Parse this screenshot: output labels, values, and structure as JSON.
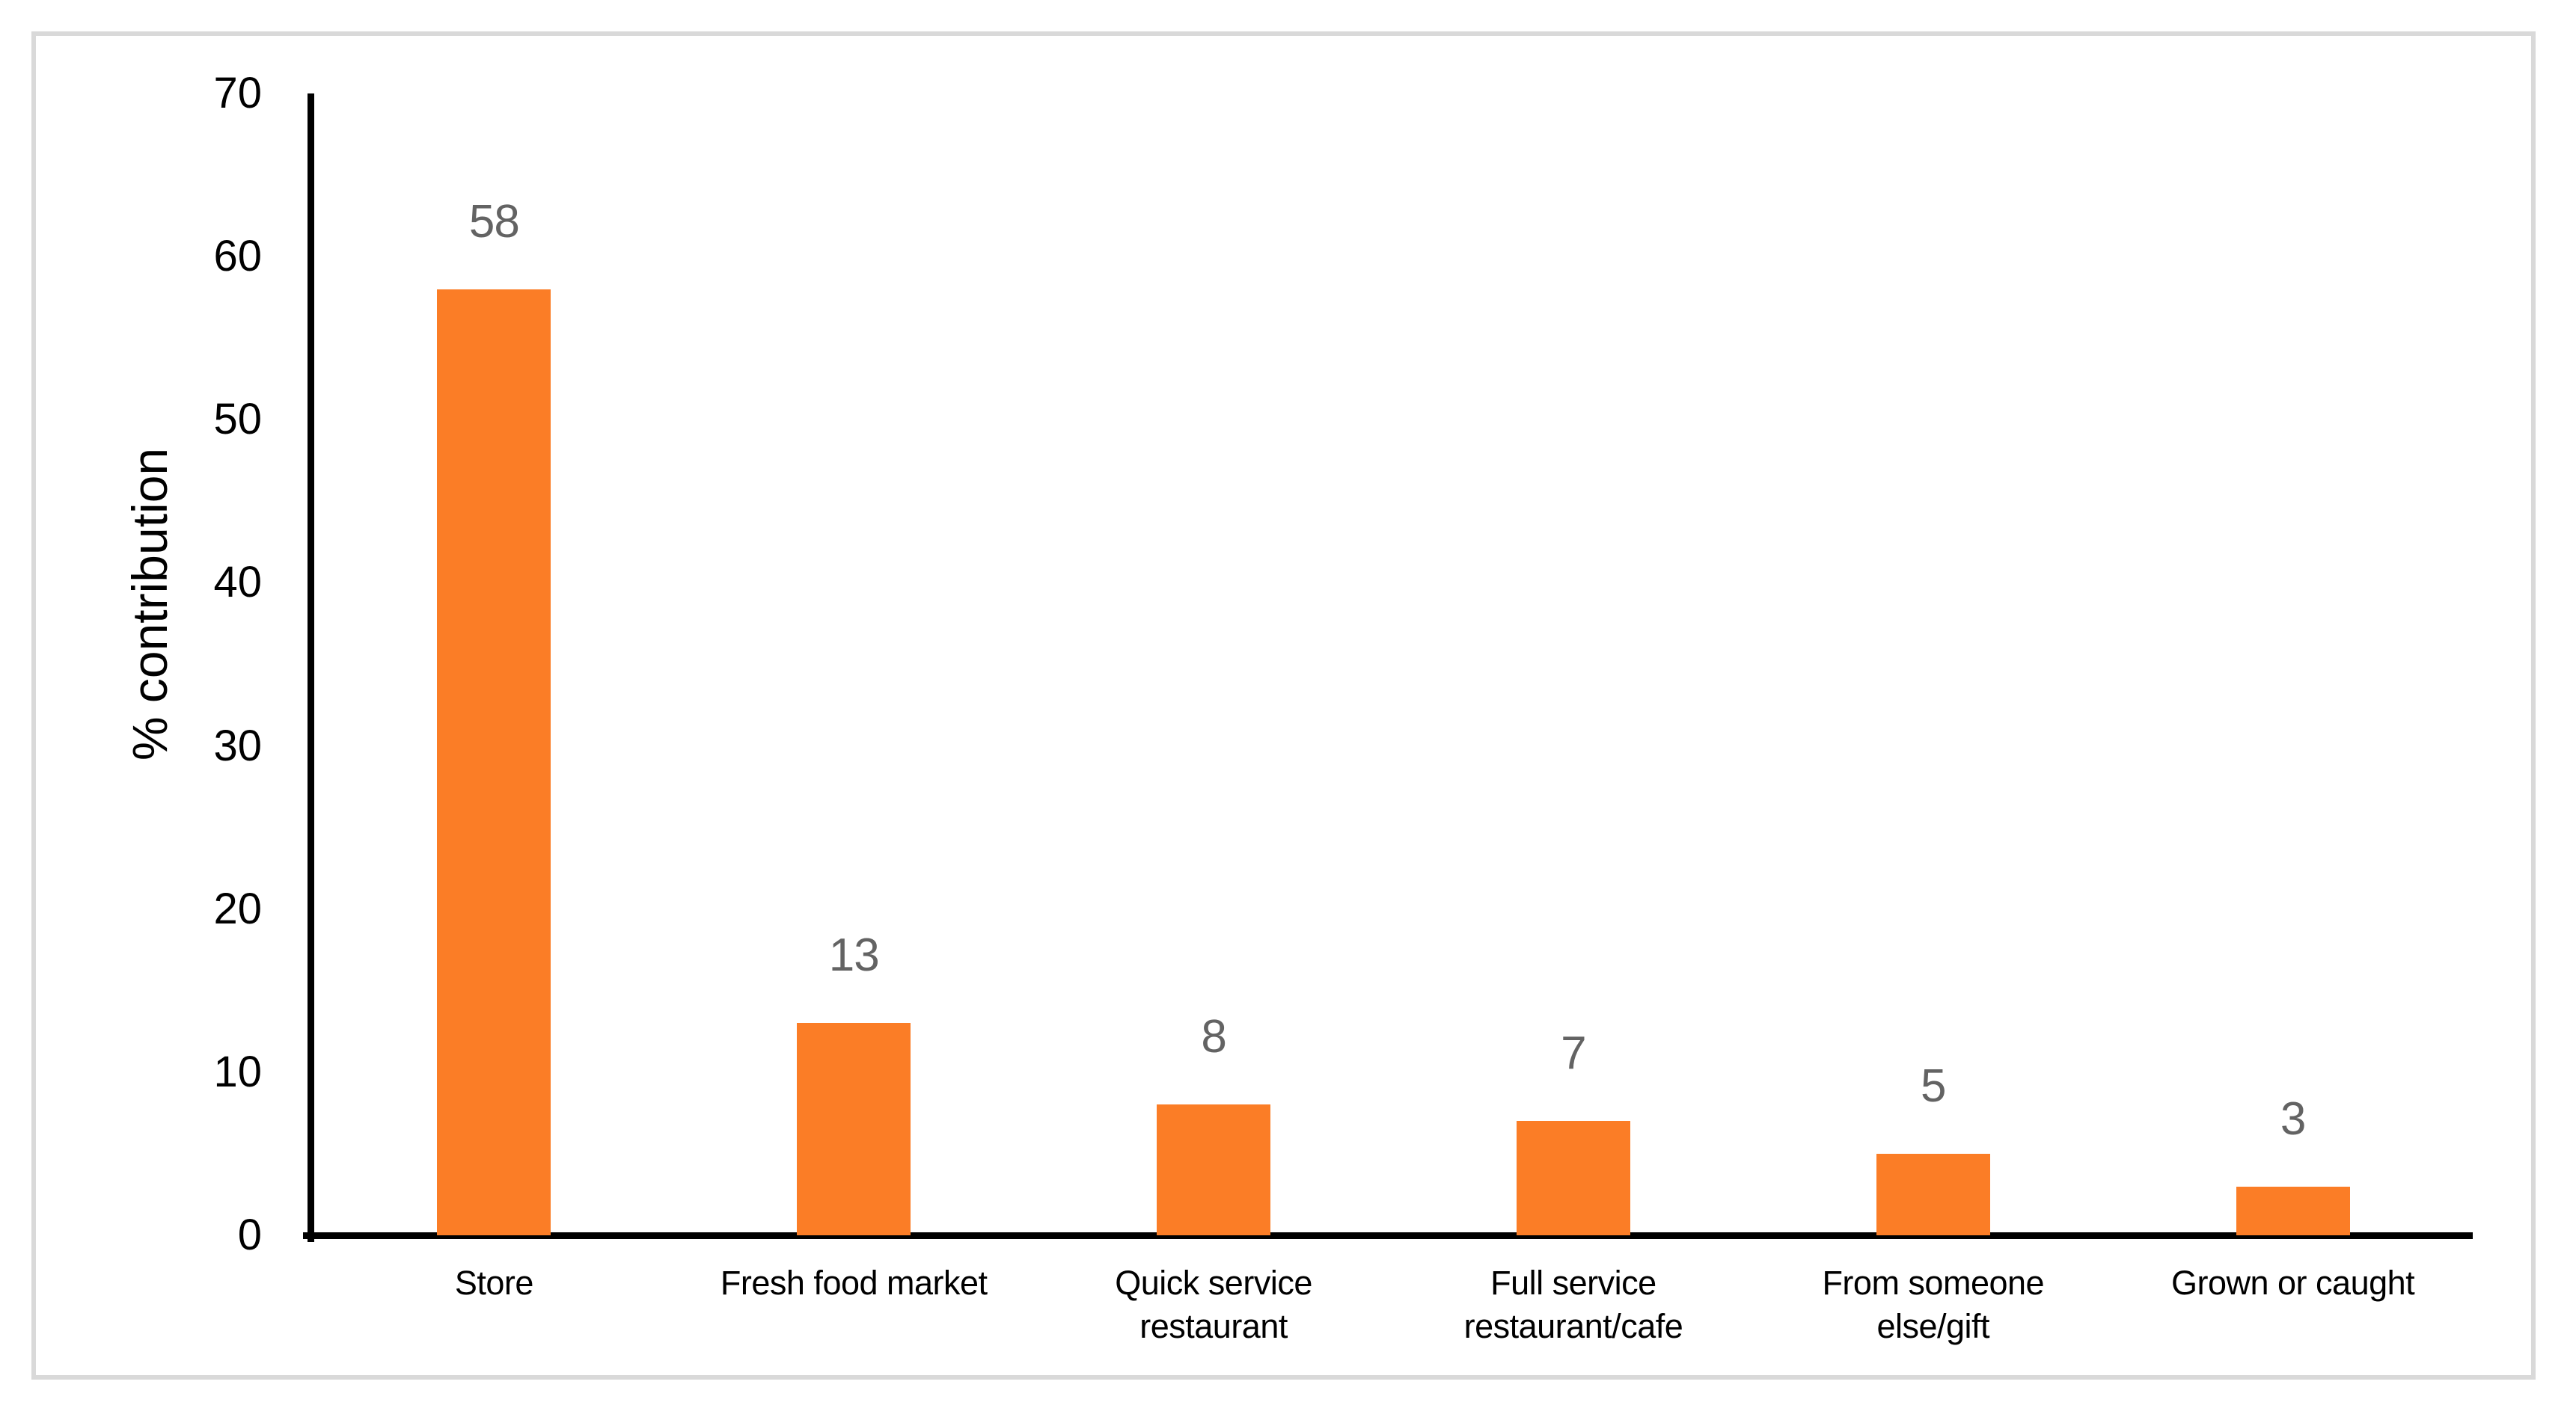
{
  "figure": {
    "background_color": "#FFFFFF",
    "border_color": "#D9D9D9"
  },
  "chart_data": {
    "type": "bar",
    "title": "",
    "categories": [
      "Store",
      "Fresh food market",
      "Quick service restaurant",
      "Full service restaurant/cafe",
      "From someone else/gift",
      "Grown or caught"
    ],
    "category_label_lines": [
      [
        "Store"
      ],
      [
        "Fresh food market"
      ],
      [
        "Quick service",
        "restaurant"
      ],
      [
        "Full service",
        "restaurant/cafe"
      ],
      [
        "From someone",
        "else/gift"
      ],
      [
        "Grown or caught"
      ]
    ],
    "values": [
      58,
      13,
      8,
      7,
      5,
      3
    ],
    "data_labels": [
      "58",
      "13",
      "8",
      "7",
      "5",
      "3"
    ],
    "xlabel": "",
    "ylabel": "% contribution",
    "yticks": [
      0,
      10,
      20,
      30,
      40,
      50,
      60,
      70
    ],
    "ylim": [
      0,
      70
    ],
    "grid": false,
    "legend": false,
    "bar_color": "#FB7D26",
    "data_label_color": "#636363",
    "axis_color": "#000000",
    "tick_label_color": "#000000"
  }
}
